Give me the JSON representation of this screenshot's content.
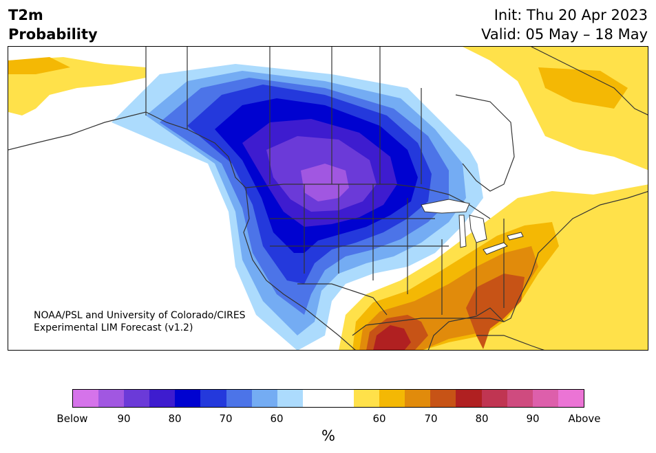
{
  "header": {
    "variable": "T2m",
    "product": "Probability",
    "init": "Init: Thu 20 Apr 2023",
    "valid": "Valid: 05 May – 18 May"
  },
  "credit": {
    "line1": "NOAA/PSL and University of Colorado/CIRES",
    "line2": "Experimental LIM Forecast (v1.2)"
  },
  "colorbar": {
    "unit": "%",
    "colors": [
      "#d573ea",
      "#a157e1",
      "#6b3ad8",
      "#3e1ccf",
      "#0002d0",
      "#2439dc",
      "#4c74e8",
      "#74acf3",
      "#acdbfd",
      "#ffffff",
      "#ffffff",
      "#ffe14a",
      "#f4b804",
      "#e18b0b",
      "#c75316",
      "#b02021",
      "#c03552",
      "#cf4b7f",
      "#dd5fab",
      "#eb74d5"
    ],
    "ticks": [
      "Below",
      "90",
      "80",
      "70",
      "60",
      "60",
      "70",
      "80",
      "90",
      "Above"
    ]
  },
  "palette": {
    "land_outline": "#333333",
    "lake": "#ffffff"
  }
}
